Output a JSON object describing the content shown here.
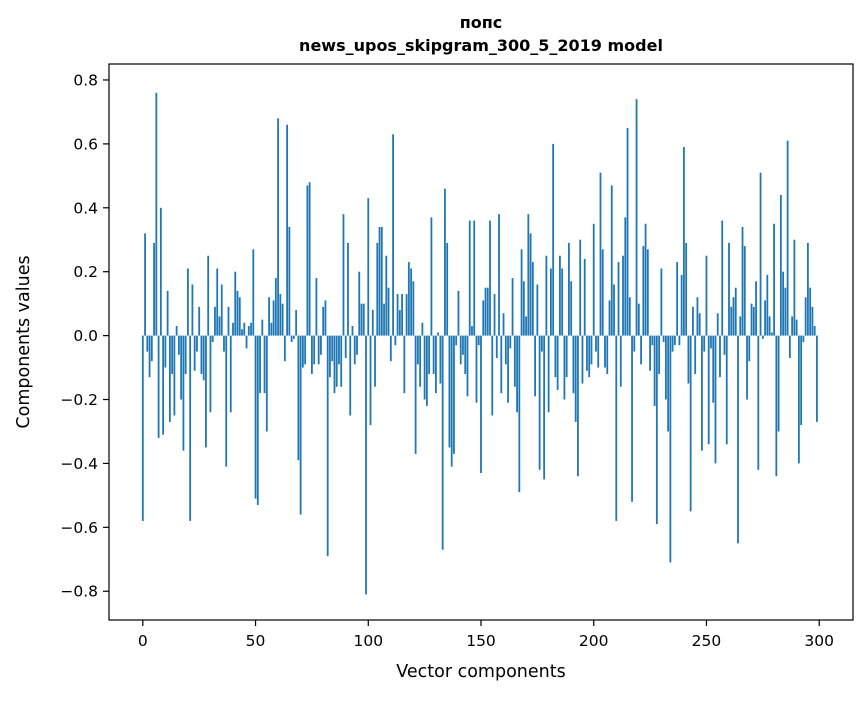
{
  "chart_data": {
    "type": "bar",
    "title": "попс",
    "subtitle": "news_upos_skipgram_300_5_2019 model",
    "xlabel": "Vector components",
    "ylabel": "Components values",
    "xlim": [
      -15,
      315
    ],
    "ylim": [
      -0.89,
      0.85
    ],
    "x_ticks": [
      0,
      50,
      100,
      150,
      200,
      250,
      300
    ],
    "x_tick_labels": [
      "0",
      "50",
      "100",
      "150",
      "200",
      "250",
      "300"
    ],
    "y_ticks": [
      -0.8,
      -0.6,
      -0.4,
      -0.2,
      0.0,
      0.2,
      0.4,
      0.6,
      0.8
    ],
    "y_tick_labels": [
      "−0.8",
      "−0.6",
      "−0.4",
      "−0.2",
      "0.0",
      "0.2",
      "0.4",
      "0.6",
      "0.8"
    ],
    "grid": false,
    "legend": "none",
    "bar_color": "#1f77b4",
    "x": [
      0,
      1,
      2,
      3,
      4,
      5,
      6,
      7,
      8,
      9,
      10,
      11,
      12,
      13,
      14,
      15,
      16,
      17,
      18,
      19,
      20,
      21,
      22,
      23,
      24,
      25,
      26,
      27,
      28,
      29,
      30,
      31,
      32,
      33,
      34,
      35,
      36,
      37,
      38,
      39,
      40,
      41,
      42,
      43,
      44,
      45,
      46,
      47,
      48,
      49,
      50,
      51,
      52,
      53,
      54,
      55,
      56,
      57,
      58,
      59,
      60,
      61,
      62,
      63,
      64,
      65,
      66,
      67,
      68,
      69,
      70,
      71,
      72,
      73,
      74,
      75,
      76,
      77,
      78,
      79,
      80,
      81,
      82,
      83,
      84,
      85,
      86,
      87,
      88,
      89,
      90,
      91,
      92,
      93,
      94,
      95,
      96,
      97,
      98,
      99,
      100,
      101,
      102,
      103,
      104,
      105,
      106,
      107,
      108,
      109,
      110,
      111,
      112,
      113,
      114,
      115,
      116,
      117,
      118,
      119,
      120,
      121,
      122,
      123,
      124,
      125,
      126,
      127,
      128,
      129,
      130,
      131,
      132,
      133,
      134,
      135,
      136,
      137,
      138,
      139,
      140,
      141,
      142,
      143,
      144,
      145,
      146,
      147,
      148,
      149,
      150,
      151,
      152,
      153,
      154,
      155,
      156,
      157,
      158,
      159,
      160,
      161,
      162,
      163,
      164,
      165,
      166,
      167,
      168,
      169,
      170,
      171,
      172,
      173,
      174,
      175,
      176,
      177,
      178,
      179,
      180,
      181,
      182,
      183,
      184,
      185,
      186,
      187,
      188,
      189,
      190,
      191,
      192,
      193,
      194,
      195,
      196,
      197,
      198,
      199,
      200,
      201,
      202,
      203,
      204,
      205,
      206,
      207,
      208,
      209,
      210,
      211,
      212,
      213,
      214,
      215,
      216,
      217,
      218,
      219,
      220,
      221,
      222,
      223,
      224,
      225,
      226,
      227,
      228,
      229,
      230,
      231,
      232,
      233,
      234,
      235,
      236,
      237,
      238,
      239,
      240,
      241,
      242,
      243,
      244,
      245,
      246,
      247,
      248,
      249,
      250,
      251,
      252,
      253,
      254,
      255,
      256,
      257,
      258,
      259,
      260,
      261,
      262,
      263,
      264,
      265,
      266,
      267,
      268,
      269,
      270,
      271,
      272,
      273,
      274,
      275,
      276,
      277,
      278,
      279,
      280,
      281,
      282,
      283,
      284,
      285,
      286,
      287,
      288,
      289,
      290,
      291,
      292,
      293,
      294,
      295,
      296,
      297,
      298,
      299
    ],
    "values": [
      -0.58,
      0.32,
      -0.05,
      -0.13,
      -0.08,
      0.29,
      0.76,
      -0.32,
      0.4,
      -0.31,
      -0.1,
      0.14,
      -0.27,
      -0.12,
      -0.25,
      0.03,
      -0.06,
      -0.2,
      -0.36,
      -0.12,
      0.21,
      -0.58,
      0.16,
      -0.11,
      -0.05,
      0.09,
      -0.12,
      -0.14,
      -0.35,
      0.25,
      -0.24,
      -0.02,
      0.09,
      0.21,
      0.06,
      0.16,
      -0.05,
      -0.41,
      0.09,
      -0.24,
      0.04,
      0.2,
      0.14,
      0.12,
      0.02,
      0.04,
      -0.04,
      0.03,
      0.04,
      0.27,
      -0.51,
      -0.53,
      -0.18,
      0.05,
      -0.18,
      -0.3,
      0.12,
      0.04,
      0.11,
      0.18,
      0.68,
      0.13,
      0.1,
      -0.08,
      0.66,
      0.34,
      -0.02,
      -0.01,
      0.08,
      -0.39,
      -0.56,
      -0.1,
      -0.09,
      0.47,
      0.48,
      -0.12,
      -0.09,
      0.18,
      -0.09,
      -0.06,
      0.09,
      0.11,
      -0.69,
      -0.13,
      -0.08,
      -0.18,
      -0.16,
      -0.09,
      -0.16,
      0.38,
      -0.07,
      0.29,
      -0.25,
      0.03,
      -0.09,
      -0.06,
      0.2,
      0.1,
      0.1,
      -0.81,
      0.43,
      -0.28,
      0.08,
      -0.16,
      0.29,
      0.34,
      0.34,
      0.1,
      0.25,
      0.15,
      -0.08,
      0.63,
      -0.03,
      0.13,
      0.08,
      0.13,
      -0.18,
      0.13,
      0.23,
      0.21,
      0.17,
      -0.37,
      -0.09,
      -0.16,
      0.04,
      -0.2,
      -0.22,
      -0.12,
      0.37,
      -0.12,
      -0.18,
      0.01,
      -0.15,
      -0.67,
      0.46,
      0.29,
      -0.35,
      -0.41,
      -0.37,
      -0.03,
      0.14,
      -0.09,
      -0.06,
      -0.12,
      -0.19,
      0.36,
      0.03,
      0.36,
      -0.21,
      -0.03,
      -0.43,
      0.11,
      0.15,
      0.15,
      0.36,
      -0.25,
      0.13,
      -0.07,
      0.38,
      -0.18,
      0.07,
      -0.09,
      -0.21,
      -0.04,
      0.18,
      -0.16,
      -0.24,
      -0.49,
      0.27,
      0.17,
      0.06,
      0.38,
      0.32,
      0.23,
      -0.19,
      0.16,
      -0.42,
      -0.05,
      -0.45,
      0.25,
      -0.24,
      0.21,
      0.6,
      -0.13,
      -0.17,
      0.25,
      0.21,
      -0.2,
      -0.13,
      0.29,
      0.17,
      -0.18,
      -0.27,
      -0.44,
      0.3,
      -0.15,
      0.24,
      -0.11,
      -0.13,
      -0.09,
      0.35,
      -0.05,
      -0.1,
      0.51,
      0.27,
      -0.1,
      -0.12,
      0.11,
      0.47,
      0.16,
      -0.58,
      0.23,
      -0.16,
      0.25,
      0.37,
      0.65,
      0.12,
      -0.52,
      -0.05,
      0.74,
      0.1,
      -0.09,
      0.28,
      0.35,
      0.27,
      -0.11,
      -0.03,
      -0.22,
      -0.59,
      -0.12,
      0.21,
      -0.02,
      -0.2,
      -0.3,
      -0.71,
      -0.05,
      -0.03,
      0.23,
      -0.03,
      0.19,
      0.59,
      0.29,
      -0.15,
      -0.55,
      0.09,
      -0.12,
      0.12,
      0.07,
      -0.36,
      -0.05,
      0.25,
      -0.34,
      -0.04,
      -0.21,
      -0.4,
      0.07,
      -0.13,
      0.36,
      -0.06,
      -0.34,
      0.29,
      0.09,
      0.12,
      0.15,
      -0.65,
      0.06,
      0.34,
      0.28,
      -0.2,
      -0.08,
      0.1,
      0.09,
      0.17,
      -0.42,
      0.51,
      -0.01,
      0.11,
      0.19,
      0.06,
      0.01,
      0.35,
      -0.44,
      -0.3,
      0.44,
      0.2,
      0.15,
      0.61,
      -0.07,
      0.06,
      0.3,
      0.05,
      -0.4,
      -0.28,
      -0.02,
      0.12,
      0.29,
      0.15,
      0.09,
      0.03,
      -0.27
    ]
  }
}
